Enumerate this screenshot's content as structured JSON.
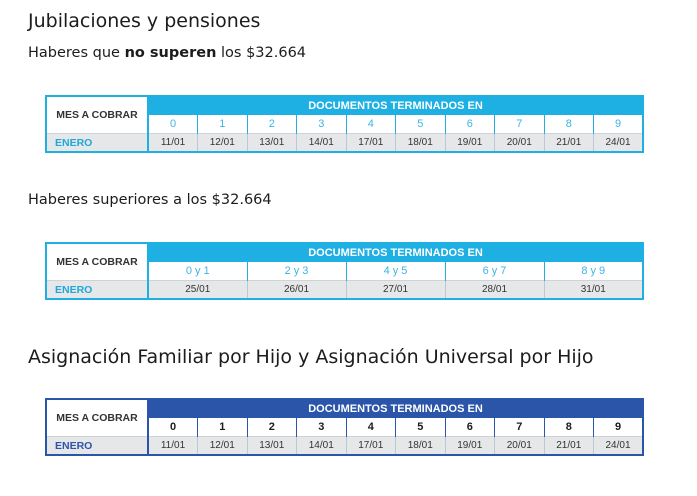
{
  "sections": {
    "jubilaciones_title": "Jubilaciones y pensiones",
    "sub1_pre": "Haberes que ",
    "sub1_bold": "no superen",
    "sub1_post": " los $32.664",
    "sub2": "Haberes superiores a los $32.664",
    "asignacion_title": "Asignación Familiar por Hijo y Asignación Universal por Hijo"
  },
  "table1": {
    "mes_label": "MES A COBRAR",
    "header": "DOCUMENTOS TERMINADOS EN",
    "month": "ENERO",
    "digits": [
      "0",
      "1",
      "2",
      "3",
      "4",
      "5",
      "6",
      "7",
      "8",
      "9"
    ],
    "dates": [
      "11/01",
      "12/01",
      "13/01",
      "14/01",
      "17/01",
      "18/01",
      "19/01",
      "20/01",
      "21/01",
      "24/01"
    ]
  },
  "table2": {
    "mes_label": "MES A COBRAR",
    "header": "DOCUMENTOS TERMINADOS EN",
    "month": "ENERO",
    "digits": [
      "0 y 1",
      "2 y 3",
      "4 y 5",
      "6 y 7",
      "8 y 9"
    ],
    "dates": [
      "25/01",
      "26/01",
      "27/01",
      "28/01",
      "31/01"
    ]
  },
  "table3": {
    "mes_label": "MES A COBRAR",
    "header": "DOCUMENTOS TERMINADOS EN",
    "month": "ENERO",
    "digits": [
      "0",
      "1",
      "2",
      "3",
      "4",
      "5",
      "6",
      "7",
      "8",
      "9"
    ],
    "dates": [
      "11/01",
      "12/01",
      "13/01",
      "14/01",
      "17/01",
      "18/01",
      "19/01",
      "20/01",
      "21/01",
      "24/01"
    ]
  },
  "colors": {
    "cyan_accent": "#1fb0e3",
    "navy_accent": "#2b55a8",
    "row_bg": "#e6e7e8"
  }
}
